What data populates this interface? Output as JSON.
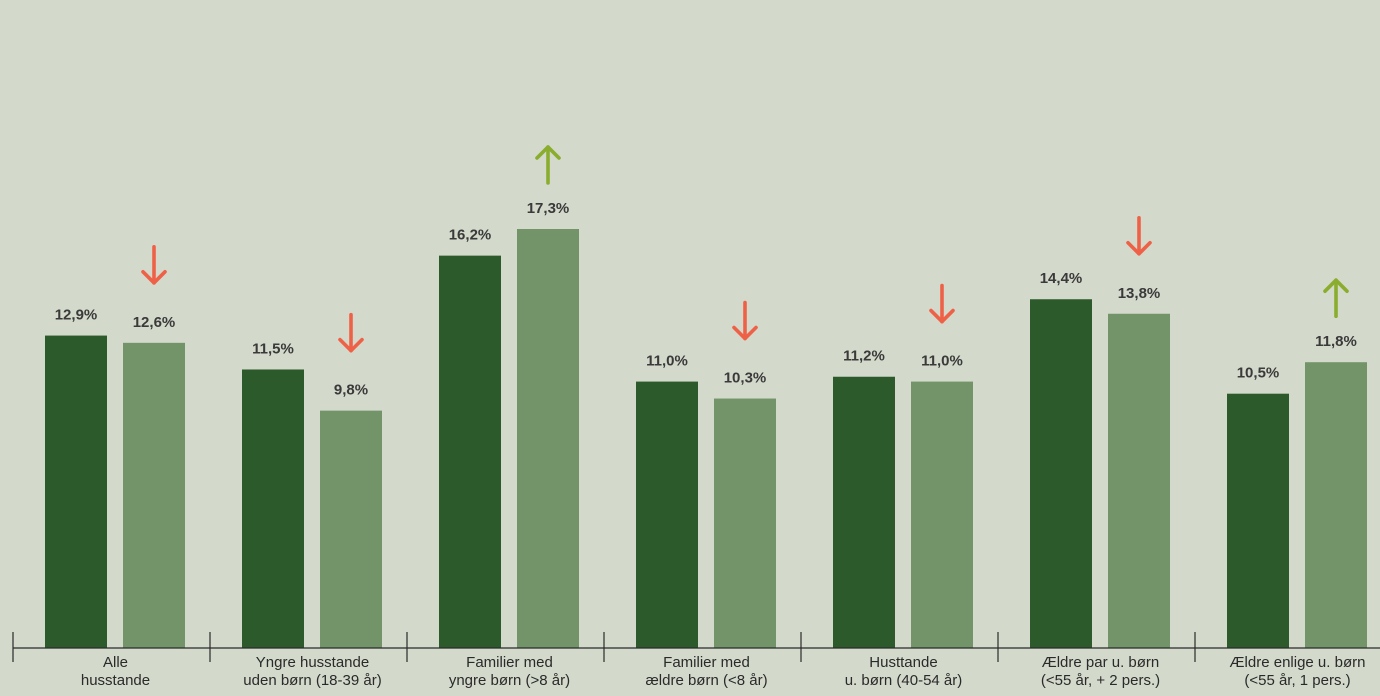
{
  "chart_data": {
    "type": "bar",
    "title": "",
    "xlabel": "",
    "ylabel": "",
    "ylim": [
      0,
      19
    ],
    "grid": false,
    "legend": "none",
    "categories": [
      [
        "Alle",
        "husstande"
      ],
      [
        "Yngre husstande",
        "uden børn (18-39 år)"
      ],
      [
        "Familier med",
        "yngre børn (>8 år)"
      ],
      [
        "Familier med",
        "ældre børn (<8 år)"
      ],
      [
        "Husttande",
        "u. børn (40-54 år)"
      ],
      [
        "Ældre par u. børn",
        "(<55 år, + 2 pers.)"
      ],
      [
        "Ældre enlige u. børn",
        "(<55 år, 1 pers.)"
      ]
    ],
    "series": [
      {
        "color": "#2d5a2b",
        "values": [
          12.9,
          11.5,
          16.2,
          11.0,
          11.2,
          14.4,
          10.5
        ],
        "labels": [
          "12,9%",
          "11,5%",
          "16,2%",
          "11,0%",
          "11,2%",
          "14,4%",
          "10,5%"
        ]
      },
      {
        "color": "#729468",
        "values": [
          12.6,
          9.8,
          17.3,
          10.3,
          11.0,
          13.8,
          11.8
        ],
        "labels": [
          "12,6%",
          "9,8%",
          "17,3%",
          "10,3%",
          "11,0%",
          "13,8%",
          "11,8%"
        ]
      }
    ],
    "change_arrows": [
      "down",
      "down",
      "up",
      "down",
      "down",
      "down",
      "up"
    ],
    "arrow_colors": {
      "up": "#8aad2e",
      "down": "#ef6147"
    }
  },
  "colors": {
    "background": "#d3d9cb",
    "axis": "#2a2a2a",
    "label_text": "#3a3a3a"
  }
}
